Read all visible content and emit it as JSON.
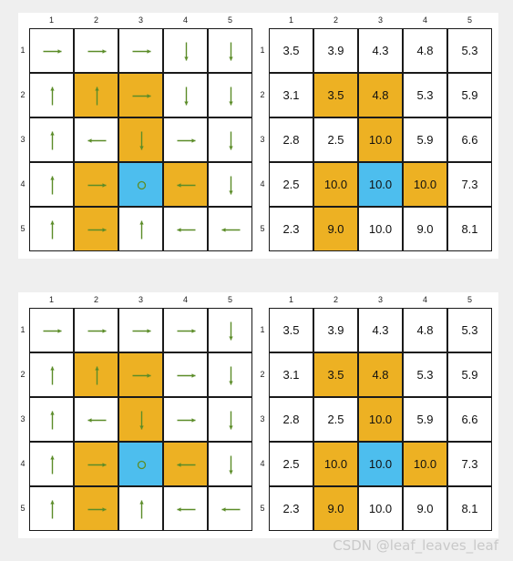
{
  "column_labels": [
    "1",
    "2",
    "3",
    "4",
    "5"
  ],
  "row_labels": [
    "1",
    "2",
    "3",
    "4",
    "5"
  ],
  "colors": {
    "forbidden": "#edb123",
    "target": "#4dbeee",
    "arrow": "#5b8c28",
    "border": "#1a1a1a"
  },
  "cell_types": [
    [
      "normal",
      "normal",
      "normal",
      "normal",
      "normal"
    ],
    [
      "normal",
      "forbidden",
      "forbidden",
      "normal",
      "normal"
    ],
    [
      "normal",
      "normal",
      "forbidden",
      "normal",
      "normal"
    ],
    [
      "normal",
      "forbidden",
      "target",
      "forbidden",
      "normal"
    ],
    [
      "normal",
      "forbidden",
      "normal",
      "normal",
      "normal"
    ]
  ],
  "panels": [
    {
      "policy": [
        [
          "right",
          "right",
          "right",
          "down",
          "down"
        ],
        [
          "up",
          "up",
          "right",
          "down",
          "down"
        ],
        [
          "up",
          "left",
          "down",
          "right",
          "down"
        ],
        [
          "up",
          "right",
          "stay",
          "left",
          "down"
        ],
        [
          "up",
          "right",
          "up",
          "left",
          "left"
        ]
      ],
      "values": [
        [
          "3.5",
          "3.9",
          "4.3",
          "4.8",
          "5.3"
        ],
        [
          "3.1",
          "3.5",
          "4.8",
          "5.3",
          "5.9"
        ],
        [
          "2.8",
          "2.5",
          "10.0",
          "5.9",
          "6.6"
        ],
        [
          "2.5",
          "10.0",
          "10.0",
          "10.0",
          "7.3"
        ],
        [
          "2.3",
          "9.0",
          "10.0",
          "9.0",
          "8.1"
        ]
      ]
    },
    {
      "policy": [
        [
          "right",
          "right",
          "right",
          "right",
          "down"
        ],
        [
          "up",
          "up",
          "right",
          "right",
          "down"
        ],
        [
          "up",
          "left",
          "down",
          "right",
          "down"
        ],
        [
          "up",
          "right",
          "stay",
          "left",
          "down"
        ],
        [
          "up",
          "right",
          "up",
          "left",
          "left"
        ]
      ],
      "values": [
        [
          "3.5",
          "3.9",
          "4.3",
          "4.8",
          "5.3"
        ],
        [
          "3.1",
          "3.5",
          "4.8",
          "5.3",
          "5.9"
        ],
        [
          "2.8",
          "2.5",
          "10.0",
          "5.9",
          "6.6"
        ],
        [
          "2.5",
          "10.0",
          "10.0",
          "10.0",
          "7.3"
        ],
        [
          "2.3",
          "9.0",
          "10.0",
          "9.0",
          "8.1"
        ]
      ]
    }
  ],
  "watermark": "CSDN @leaf_leaves_leaf"
}
